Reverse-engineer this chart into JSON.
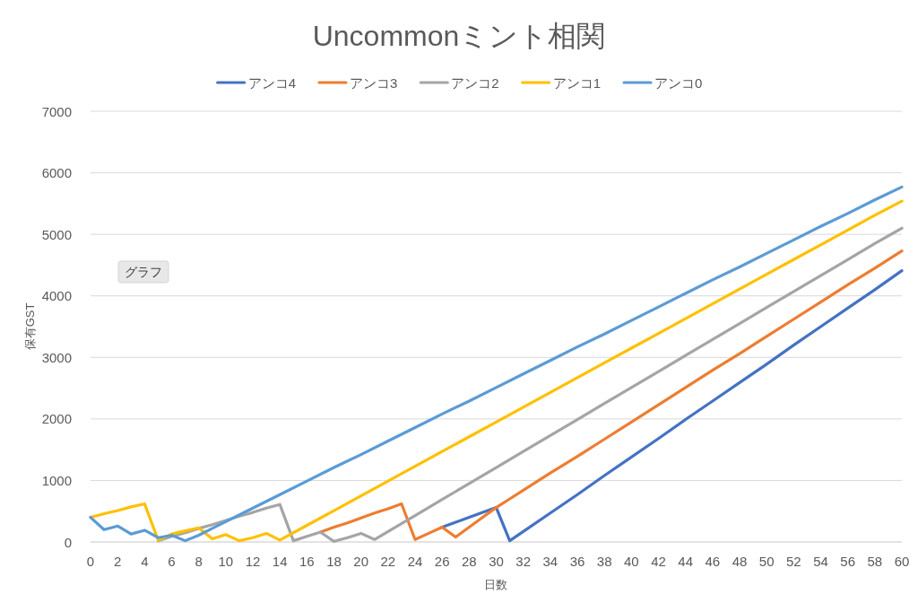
{
  "chart_data": {
    "type": "line",
    "title": "Uncommonミント相関",
    "xlabel": "日数",
    "ylabel": "保有GST",
    "xlim": [
      0,
      60
    ],
    "xticks": [
      0,
      2,
      4,
      6,
      8,
      10,
      12,
      14,
      16,
      18,
      20,
      22,
      24,
      26,
      28,
      30,
      32,
      34,
      36,
      38,
      40,
      42,
      44,
      46,
      48,
      50,
      52,
      54,
      56,
      58,
      60
    ],
    "ylim": [
      0,
      7000
    ],
    "yticks": [
      0,
      1000,
      2000,
      3000,
      4000,
      5000,
      6000,
      7000
    ],
    "grid": "y",
    "legend": "top",
    "annotations": [
      "グラフ"
    ],
    "series": [
      {
        "name": "アンコ4",
        "color": "#4472c4",
        "x": [
          26,
          27,
          28,
          29,
          30,
          31,
          32,
          34,
          36,
          38,
          40,
          42,
          44,
          46,
          48,
          50,
          52,
          54,
          56,
          58,
          60
        ],
        "values": [
          240,
          320,
          400,
          480,
          560,
          20,
          170,
          470,
          770,
          1080,
          1380,
          1680,
          1990,
          2290,
          2590,
          2890,
          3200,
          3500,
          3800,
          4100,
          4410
        ]
      },
      {
        "name": "アンコ3",
        "color": "#ed7d31",
        "x": [
          17,
          18,
          19,
          20,
          21,
          22,
          23,
          24,
          25,
          26,
          27,
          28,
          29,
          30,
          31,
          32,
          34,
          36,
          38,
          40,
          42,
          44,
          46,
          48,
          50,
          52,
          54,
          56,
          58,
          60
        ],
        "values": [
          160,
          240,
          310,
          390,
          470,
          540,
          620,
          40,
          140,
          240,
          80,
          240,
          400,
          560,
          700,
          840,
          1120,
          1390,
          1670,
          1950,
          2230,
          2510,
          2790,
          3060,
          3340,
          3620,
          3900,
          4180,
          4450,
          4730
        ]
      },
      {
        "name": "アンコ2",
        "color": "#a5a5a5",
        "x": [
          5,
          6,
          7,
          8,
          9,
          10,
          11,
          12,
          13,
          14,
          15,
          16,
          17,
          18,
          19,
          20,
          21,
          22,
          24,
          26,
          28,
          30,
          32,
          34,
          36,
          38,
          40,
          42,
          44,
          46,
          48,
          50,
          52,
          54,
          56,
          58,
          60
        ],
        "values": [
          20,
          90,
          150,
          220,
          280,
          350,
          420,
          480,
          550,
          610,
          20,
          90,
          160,
          10,
          70,
          140,
          40,
          170,
          430,
          690,
          950,
          1210,
          1470,
          1730,
          1990,
          2250,
          2510,
          2770,
          3030,
          3290,
          3550,
          3810,
          4070,
          4330,
          4590,
          4850,
          5100
        ]
      },
      {
        "name": "アンコ1",
        "color": "#ffc000",
        "x": [
          0,
          1,
          2,
          3,
          4,
          5,
          6,
          7,
          8,
          9,
          10,
          11,
          12,
          13,
          14,
          16,
          18,
          20,
          22,
          24,
          26,
          28,
          30,
          32,
          34,
          36,
          38,
          40,
          42,
          44,
          46,
          48,
          50,
          52,
          54,
          56,
          58,
          60
        ],
        "values": [
          400,
          460,
          510,
          570,
          620,
          30,
          130,
          180,
          230,
          50,
          120,
          20,
          70,
          140,
          30,
          270,
          510,
          750,
          990,
          1230,
          1470,
          1710,
          1950,
          2190,
          2430,
          2670,
          2910,
          3150,
          3390,
          3630,
          3870,
          4110,
          4350,
          4590,
          4830,
          5070,
          5310,
          5540
        ]
      },
      {
        "name": "アンコ0",
        "color": "#5b9bd5",
        "x": [
          0,
          1,
          2,
          3,
          4,
          5,
          6,
          7,
          8,
          9,
          10,
          12,
          14,
          16,
          18,
          20,
          22,
          24,
          26,
          28,
          30,
          32,
          34,
          36,
          38,
          40,
          42,
          44,
          46,
          48,
          50,
          52,
          54,
          56,
          58,
          60
        ],
        "values": [
          400,
          200,
          260,
          130,
          190,
          70,
          110,
          20,
          110,
          220,
          330,
          550,
          770,
          990,
          1210,
          1420,
          1640,
          1860,
          2080,
          2290,
          2510,
          2730,
          2950,
          3170,
          3380,
          3600,
          3820,
          4040,
          4260,
          4470,
          4690,
          4910,
          5130,
          5340,
          5560,
          5770
        ]
      }
    ]
  }
}
